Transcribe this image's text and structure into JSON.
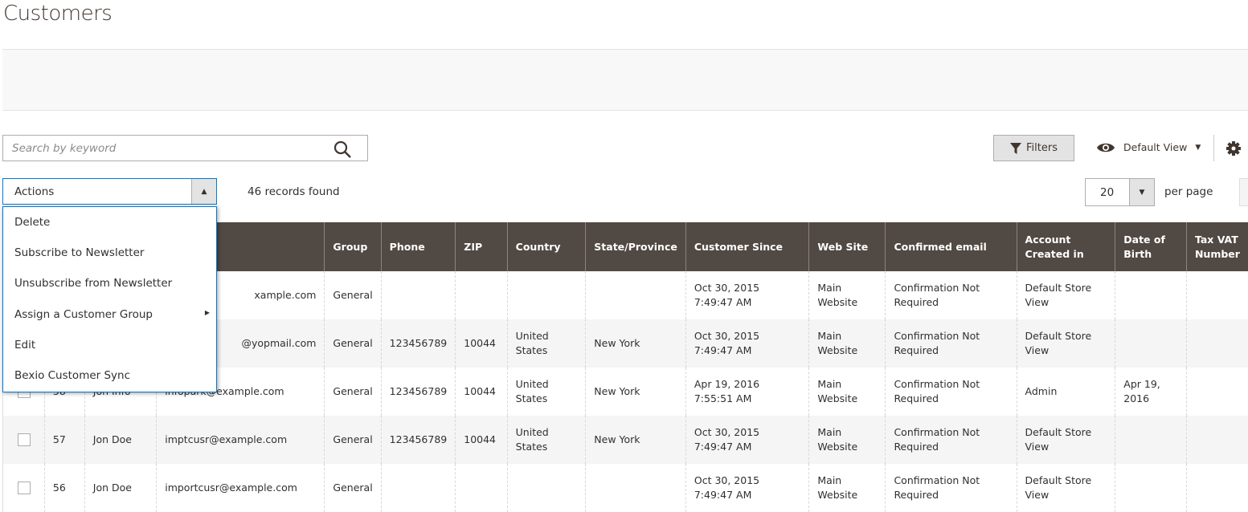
{
  "page_title": "Customers",
  "search": {
    "placeholder": "Search by keyword",
    "icon": "search-icon"
  },
  "toolbar": {
    "filters_label": "Filters",
    "view_label": "Default View",
    "records_found": "46 records found",
    "per_page_value": "20",
    "per_page_label": "per page"
  },
  "actions": {
    "label": "Actions",
    "items": [
      {
        "label": "Delete"
      },
      {
        "label": "Subscribe to Newsletter"
      },
      {
        "label": "Unsubscribe from Newsletter"
      },
      {
        "label": "Assign a Customer Group",
        "has_submenu": true
      },
      {
        "label": "Edit"
      },
      {
        "label": "Bexio Customer Sync"
      }
    ]
  },
  "colors": {
    "header_bg": "#514943",
    "accent": "#007bdb"
  },
  "table": {
    "columns": [
      "",
      "ID",
      "Name",
      "Email",
      "Group",
      "Phone",
      "ZIP",
      "Country",
      "State/Province",
      "Customer Since",
      "Web Site",
      "Confirmed email",
      "Account Created in",
      "Date of Birth",
      "Tax VAT Number"
    ],
    "rows": [
      {
        "id": "",
        "name": "",
        "email": "xample.com",
        "group": "General",
        "phone": "",
        "zip": "",
        "country": "",
        "state": "",
        "since": "Oct 30, 2015 7:49:47 AM",
        "website": "Main Website",
        "confirmed": "Confirmation Not Required",
        "created_in": "Default Store View",
        "dob": "",
        "tax": ""
      },
      {
        "id": "",
        "name": "",
        "email": "@yopmail.com",
        "group": "General",
        "phone": "123456789",
        "zip": "10044",
        "country": "United States",
        "state": "New York",
        "since": "Oct 30, 2015 7:49:47 AM",
        "website": "Main Website",
        "confirmed": "Confirmation Not Required",
        "created_in": "Default Store View",
        "dob": "",
        "tax": ""
      },
      {
        "id": "58",
        "name": "Jon Info",
        "email": "infopark@example.com",
        "group": "General",
        "phone": "123456789",
        "zip": "10044",
        "country": "United States",
        "state": "New York",
        "since": "Apr 19, 2016 7:55:51 AM",
        "website": "Main Website",
        "confirmed": "Confirmation Not Required",
        "created_in": "Admin",
        "dob": "Apr 19, 2016",
        "tax": ""
      },
      {
        "id": "57",
        "name": "Jon Doe",
        "email": "imptcusr@example.com",
        "group": "General",
        "phone": "123456789",
        "zip": "10044",
        "country": "United States",
        "state": "New York",
        "since": "Oct 30, 2015 7:49:47 AM",
        "website": "Main Website",
        "confirmed": "Confirmation Not Required",
        "created_in": "Default Store View",
        "dob": "",
        "tax": ""
      },
      {
        "id": "56",
        "name": "Jon Doe",
        "email": "importcusr@example.com",
        "group": "General",
        "phone": "",
        "zip": "",
        "country": "",
        "state": "",
        "since": "Oct 30, 2015 7:49:47 AM",
        "website": "Main Website",
        "confirmed": "Confirmation Not Required",
        "created_in": "Default Store View",
        "dob": "",
        "tax": ""
      }
    ]
  }
}
